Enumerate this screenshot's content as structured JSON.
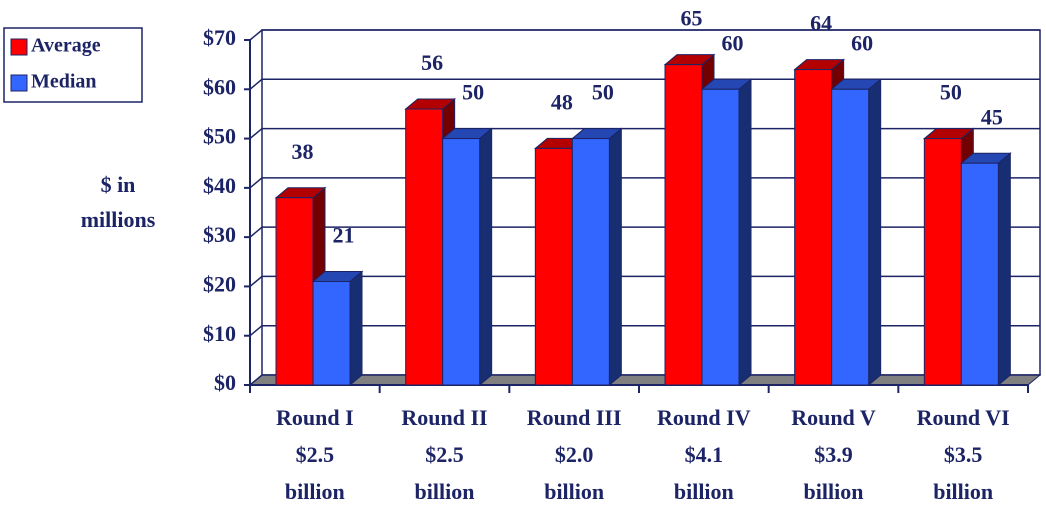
{
  "chart_data": {
    "type": "bar3d",
    "y_label": [
      "$ in",
      "millions"
    ],
    "categories": [
      [
        "Round I",
        "$2.5",
        "billion"
      ],
      [
        "Round II",
        "$2.5",
        "billion"
      ],
      [
        "Round III",
        "$2.0",
        "billion"
      ],
      [
        "Round IV",
        "$4.1",
        "billion"
      ],
      [
        "Round V",
        "$3.9",
        "billion"
      ],
      [
        "Round VI",
        "$3.5",
        "billion"
      ]
    ],
    "series": [
      {
        "name": "Average",
        "color": "#ff0000",
        "values": [
          38,
          56,
          48,
          65,
          64,
          50
        ]
      },
      {
        "name": "Median",
        "color": "#3366ff",
        "values": [
          21,
          50,
          50,
          60,
          60,
          45
        ]
      }
    ],
    "ylim": [
      0,
      70
    ],
    "yticks": [
      {
        "value": 0,
        "label": "$0"
      },
      {
        "value": 10,
        "label": "$10"
      },
      {
        "value": 20,
        "label": "$20"
      },
      {
        "value": 30,
        "label": "$30"
      },
      {
        "value": 40,
        "label": "$40"
      },
      {
        "value": 50,
        "label": "$50"
      },
      {
        "value": 60,
        "label": "$60"
      },
      {
        "value": 70,
        "label": "$70"
      }
    ],
    "grid": true,
    "legend": "top-left"
  }
}
